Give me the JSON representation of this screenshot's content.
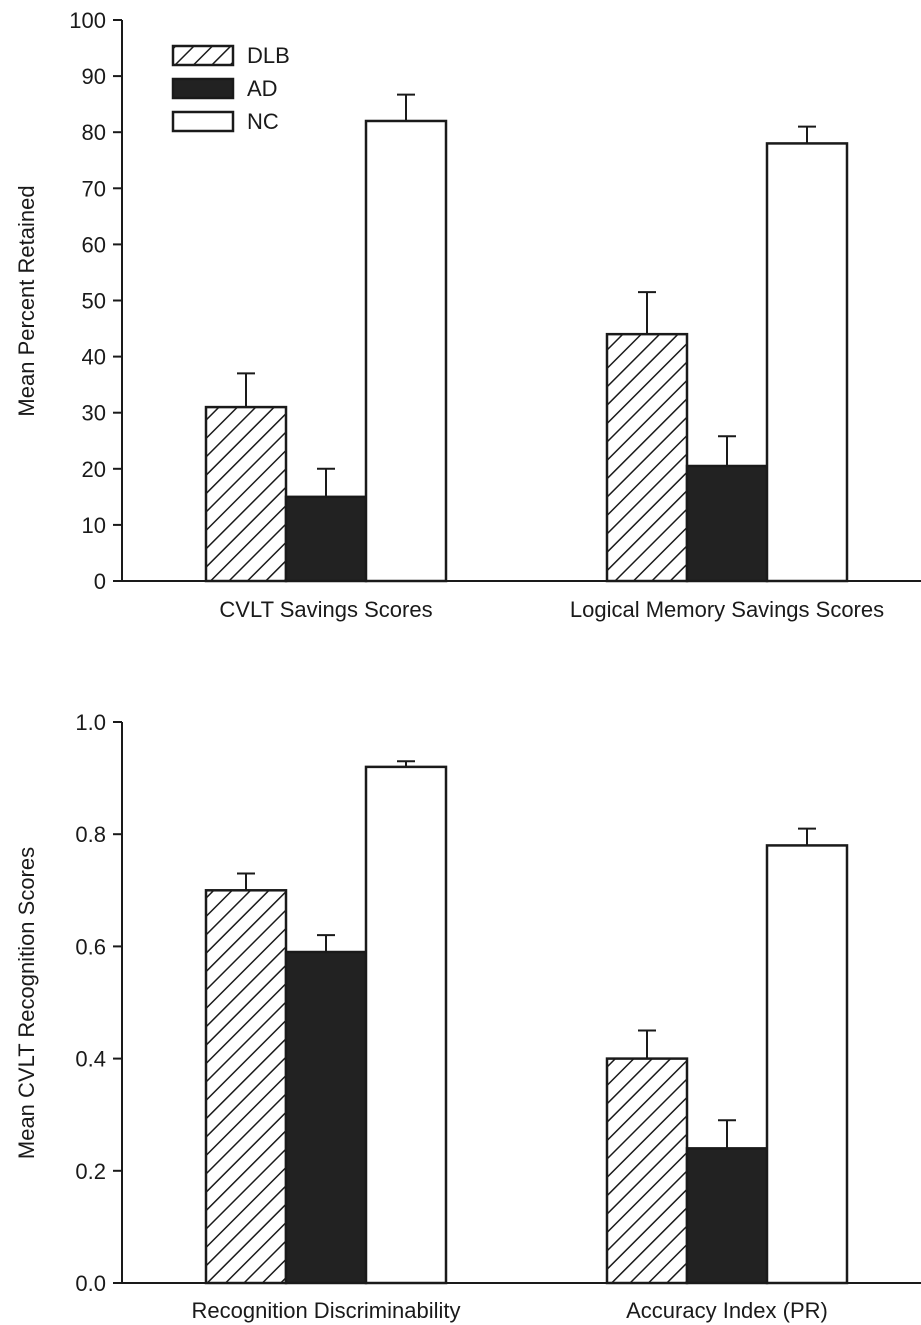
{
  "chart_data": [
    {
      "type": "bar",
      "categories": [
        "CVLT Savings Scores",
        "Logical Memory Savings Scores"
      ],
      "ylabel": "Mean Percent Retained",
      "xlabel": "",
      "ylim": [
        0,
        100
      ],
      "yticks": [
        "0",
        "10",
        "20",
        "30",
        "40",
        "50",
        "60",
        "70",
        "80",
        "90",
        "100"
      ],
      "legend_position": "top-left",
      "series": [
        {
          "name": "DLB",
          "fill": "hatched",
          "values": [
            31,
            44
          ],
          "error": [
            6,
            7.5
          ]
        },
        {
          "name": "AD",
          "fill": "#222222",
          "values": [
            15,
            20.5
          ],
          "error": [
            5,
            5.3
          ]
        },
        {
          "name": "NC",
          "fill": "#ffffff",
          "values": [
            82,
            78
          ],
          "error": [
            4.7,
            3
          ]
        }
      ]
    },
    {
      "type": "bar",
      "categories": [
        "Recognition Discriminability",
        "Accuracy Index (PR)"
      ],
      "ylabel": "Mean CVLT Recognition Scores",
      "xlabel": "",
      "ylim": [
        0,
        1
      ],
      "yticks": [
        "0.0",
        "0.2",
        "0.4",
        "0.6",
        "0.8",
        "1.0"
      ],
      "series": [
        {
          "name": "DLB",
          "fill": "hatched",
          "values": [
            0.7,
            0.4
          ],
          "error": [
            0.03,
            0.05
          ]
        },
        {
          "name": "AD",
          "fill": "#222222",
          "values": [
            0.59,
            0.24
          ],
          "error": [
            0.03,
            0.05
          ]
        },
        {
          "name": "NC",
          "fill": "#ffffff",
          "values": [
            0.92,
            0.78
          ],
          "error": [
            0.01,
            0.03
          ]
        }
      ]
    }
  ]
}
